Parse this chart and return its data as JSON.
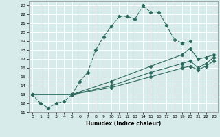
{
  "title": "",
  "xlabel": "Humidex (Indice chaleur)",
  "bg_color": "#d7ecea",
  "grid_color": "#c0dbd8",
  "line_color": "#2d6b5e",
  "xlim": [
    -0.5,
    23.5
  ],
  "ylim": [
    11,
    23.5
  ],
  "xticks": [
    0,
    1,
    2,
    3,
    4,
    5,
    6,
    7,
    8,
    9,
    10,
    11,
    12,
    13,
    14,
    15,
    16,
    17,
    18,
    19,
    20,
    21,
    22,
    23
  ],
  "yticks": [
    11,
    12,
    13,
    14,
    15,
    16,
    17,
    18,
    19,
    20,
    21,
    22,
    23
  ],
  "line1_x": [
    0,
    1,
    2,
    3,
    4,
    5,
    6,
    7,
    8,
    9,
    10,
    11,
    12,
    13,
    14,
    15,
    16,
    17,
    18,
    19,
    20
  ],
  "line1_y": [
    13,
    12,
    11.5,
    12,
    12.2,
    13.0,
    14.5,
    15.5,
    18.0,
    19.5,
    20.7,
    21.8,
    21.8,
    21.5,
    23.0,
    22.3,
    22.3,
    20.8,
    19.2,
    18.8,
    19.0
  ],
  "line2_x": [
    0,
    5,
    10,
    15,
    19,
    20,
    21,
    22,
    23
  ],
  "line2_y": [
    13,
    13.0,
    14.5,
    16.2,
    17.5,
    18.2,
    17.0,
    17.2,
    17.5
  ],
  "line3_x": [
    0,
    5,
    10,
    15,
    19,
    20,
    21,
    22,
    23
  ],
  "line3_y": [
    13,
    13.0,
    14.0,
    15.5,
    16.5,
    16.8,
    16.0,
    16.5,
    17.2
  ],
  "line4_x": [
    0,
    5,
    10,
    15,
    19,
    20,
    21,
    22,
    23
  ],
  "line4_y": [
    13,
    13.0,
    13.8,
    15.0,
    16.0,
    16.2,
    15.8,
    16.2,
    16.8
  ]
}
